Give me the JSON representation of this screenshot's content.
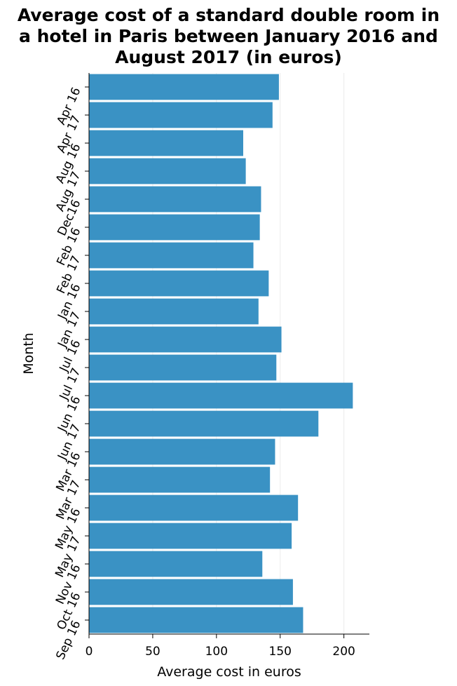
{
  "chart_data": {
    "type": "bar",
    "orientation": "horizontal",
    "title": "Average cost of a standard double room in a hotel in Paris between January 2016 and August 2017 (in euros)",
    "title_lines": [
      "Average cost of a standard double room in",
      "a hotel in Paris between January 2016 and",
      "August 2017 (in euros)"
    ],
    "xlabel": "Average cost in euros",
    "ylabel": "Month",
    "xlim": [
      0,
      220
    ],
    "xticks": [
      0,
      50,
      100,
      150,
      200
    ],
    "categories": [
      "Apr 16",
      "Apr 17",
      "Aug 16",
      "Aug 17",
      "Dec16",
      "Feb 16",
      "Feb 17",
      "Jan 16",
      "Jan 17",
      "Jul 16",
      "Jul 17",
      "Jun 16",
      "Jun 17",
      "Mar 16",
      "Mar 17",
      "May 16",
      "May 17",
      "Nov 16",
      "Oct 16",
      "Sep 16"
    ],
    "values": [
      149,
      144,
      121,
      123,
      135,
      134,
      129,
      141,
      133,
      151,
      147,
      207,
      180,
      146,
      142,
      164,
      159,
      136,
      160,
      168
    ],
    "bar_color": "#3a92c4",
    "grid": "vertical",
    "legend": "none"
  }
}
